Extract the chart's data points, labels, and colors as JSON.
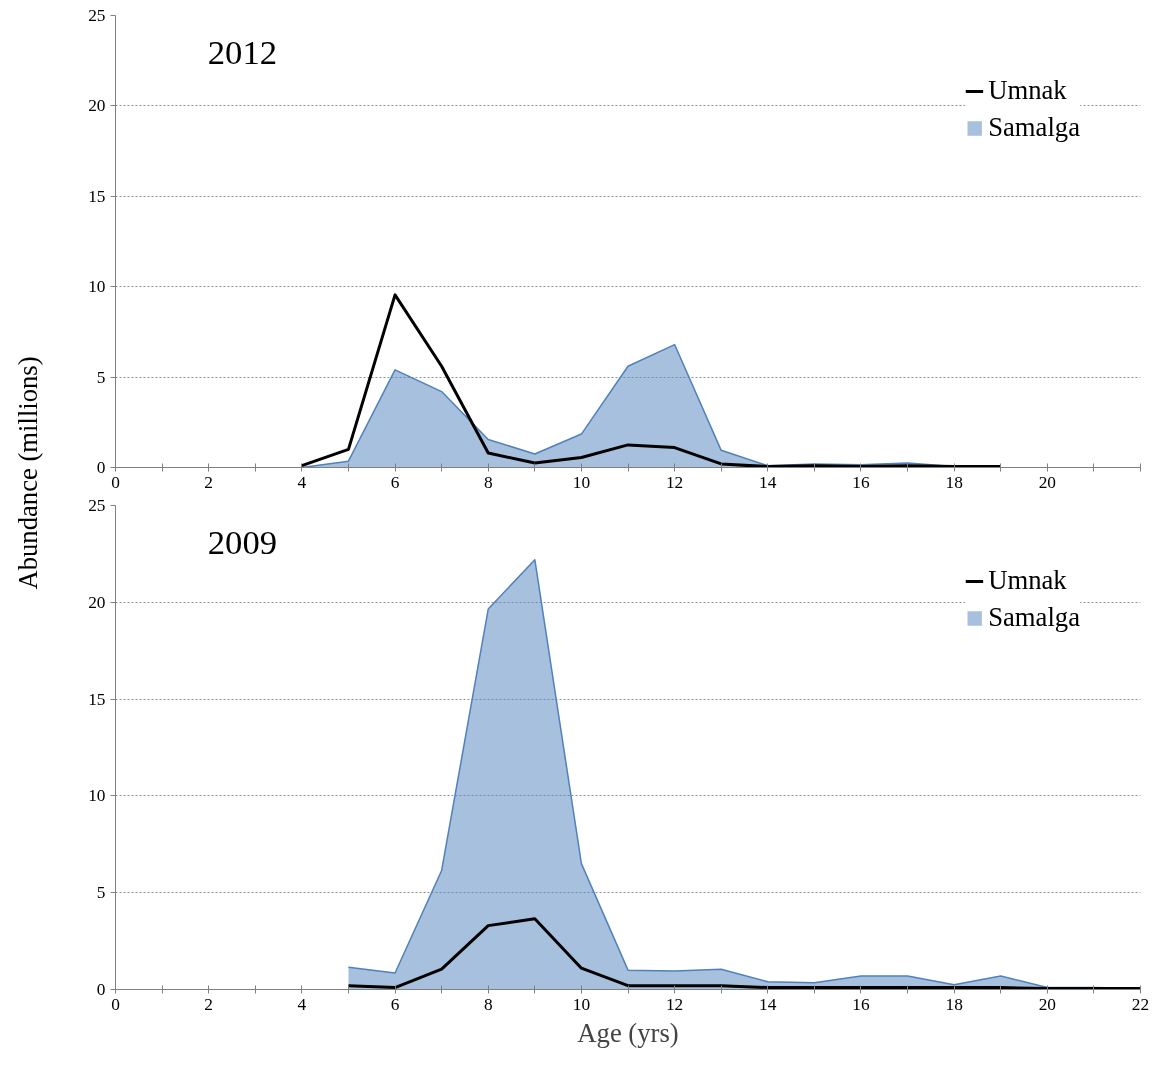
{
  "chart_data": [
    {
      "type": "area",
      "title": "2012",
      "ylabel": "Abundance (millions)",
      "xlim": [
        0,
        22
      ],
      "xticks": [
        0,
        {
          "value": 1,
          "label": null
        },
        2,
        {
          "value": 3,
          "label": null
        },
        4,
        {
          "value": 5,
          "label": null
        },
        6,
        {
          "value": 7,
          "label": null
        },
        8,
        {
          "value": 9,
          "label": null
        },
        10,
        {
          "value": 11,
          "label": null
        },
        12,
        {
          "value": 13,
          "label": null
        },
        14,
        {
          "value": 15,
          "label": null
        },
        16,
        {
          "value": 17,
          "label": null
        },
        18,
        {
          "value": 19,
          "label": null
        },
        20,
        {
          "value": 21,
          "label": null
        },
        {
          "value": 22,
          "label": null
        }
      ],
      "ylim": [
        0,
        25
      ],
      "yticks": [
        0,
        5,
        10,
        15,
        20,
        25
      ],
      "grid": "y",
      "legend": "top right",
      "series": [
        {
          "name": "Umnak",
          "type": "line",
          "color": "#000000",
          "x": [
            4,
            5,
            6,
            7,
            8,
            9,
            10,
            11,
            12,
            13,
            14,
            15,
            16,
            17,
            18,
            19
          ],
          "values": [
            0.1,
            1.0,
            9.55,
            5.6,
            0.8,
            0.25,
            0.55,
            1.25,
            1.1,
            0.2,
            0.05,
            0.1,
            0.05,
            0.1,
            0.05,
            0.05
          ]
        },
        {
          "name": "Samalga",
          "color": "#4f81bd",
          "x": [
            4,
            5,
            6,
            7,
            8,
            9,
            10,
            11,
            12,
            13,
            14,
            15,
            16,
            17,
            18,
            19
          ],
          "values": [
            0,
            0.35,
            5.4,
            4.2,
            1.55,
            0.75,
            1.85,
            5.6,
            6.8,
            0.95,
            0.1,
            0.2,
            0.15,
            0.25,
            0.05,
            0.1
          ]
        }
      ]
    },
    {
      "type": "area",
      "title": "2009",
      "xlabel": "Age (yrs)",
      "xlim": [
        0,
        22
      ],
      "xticks": [
        0,
        {
          "value": 1,
          "label": null
        },
        2,
        {
          "value": 3,
          "label": null
        },
        4,
        {
          "value": 5,
          "label": null
        },
        6,
        {
          "value": 7,
          "label": null
        },
        8,
        {
          "value": 9,
          "label": null
        },
        10,
        {
          "value": 11,
          "label": null
        },
        12,
        {
          "value": 13,
          "label": null
        },
        14,
        {
          "value": 15,
          "label": null
        },
        16,
        {
          "value": 17,
          "label": null
        },
        18,
        {
          "value": 19,
          "label": null
        },
        20,
        {
          "value": 21,
          "label": null
        },
        22
      ],
      "ylim": [
        0,
        25
      ],
      "yticks": [
        0,
        5,
        10,
        15,
        20,
        25
      ],
      "grid": "y",
      "legend": "top right",
      "series": [
        {
          "name": "Umnak",
          "type": "line",
          "color": "#000000",
          "x": [
            5,
            6,
            7,
            8,
            9,
            10,
            11,
            12,
            13,
            14,
            15,
            16,
            17,
            18,
            19,
            20,
            21,
            22
          ],
          "values": [
            0.2,
            0.1,
            1.05,
            3.3,
            3.65,
            1.1,
            0.2,
            0.2,
            0.2,
            0.1,
            0.1,
            0.1,
            0.1,
            0.1,
            0.1,
            0.05,
            0.05,
            0.05
          ]
        },
        {
          "name": "Samalga",
          "color": "#4f81bd",
          "x": [
            5,
            6,
            7,
            8,
            9,
            10,
            11,
            12,
            13,
            14,
            15,
            16,
            17,
            18,
            19,
            20,
            21,
            22
          ],
          "values": [
            1.15,
            0.85,
            6.15,
            19.65,
            22.2,
            6.5,
            1.0,
            0.95,
            1.05,
            0.4,
            0.35,
            0.7,
            0.7,
            0.25,
            0.7,
            0.1,
            0.1,
            0.05
          ]
        }
      ]
    }
  ]
}
